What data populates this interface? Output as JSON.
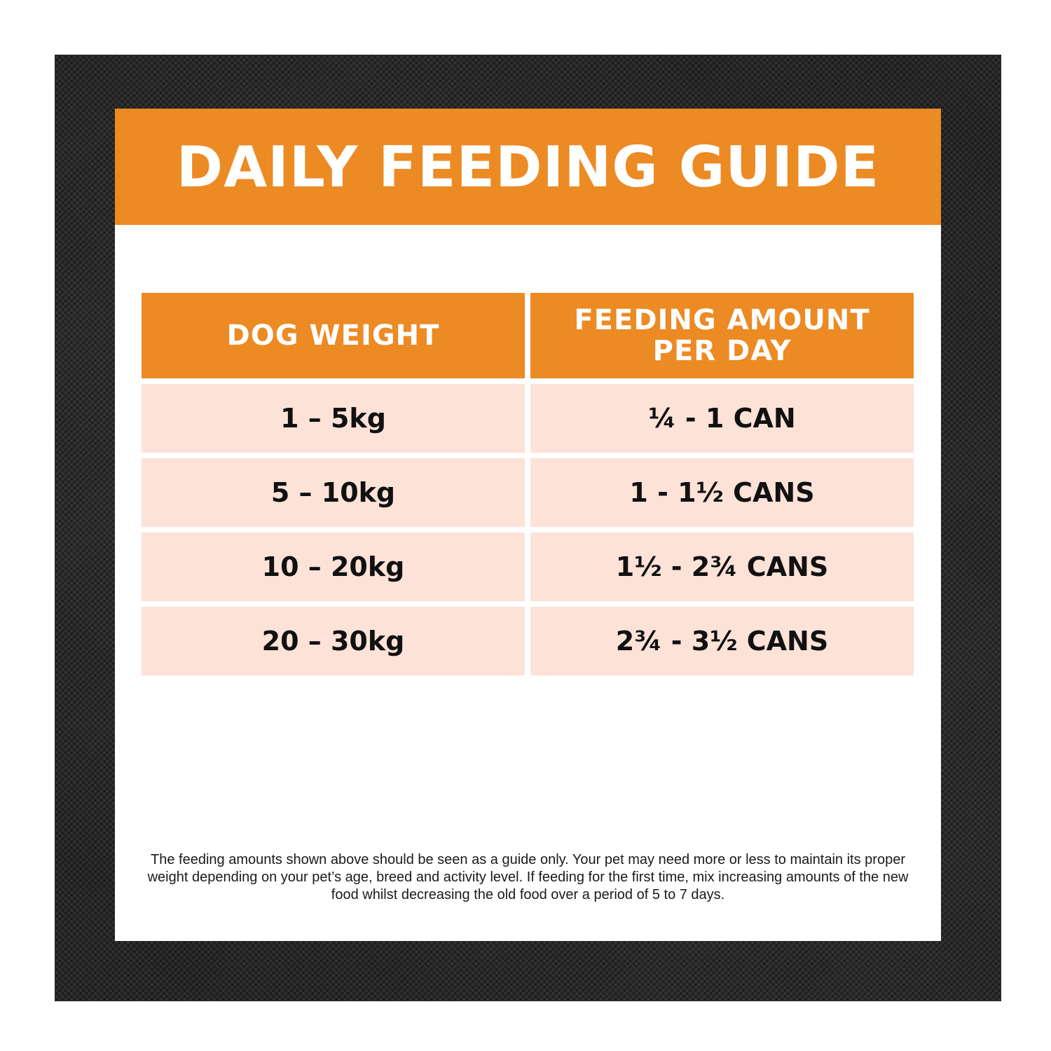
{
  "title": "DAILY FEEDING GUIDE",
  "table": {
    "headers": {
      "weight": "DOG WEIGHT",
      "amount_line1": "FEEDING AMOUNT",
      "amount_line2": "PER DAY"
    },
    "rows": [
      {
        "weight": "1 – 5kg",
        "amount": "¼ - 1 CAN"
      },
      {
        "weight": "5 – 10kg",
        "amount": "1 - 1½ CANS"
      },
      {
        "weight": "10 – 20kg",
        "amount": "1½ - 2¾ CANS"
      },
      {
        "weight": "20 – 30kg",
        "amount": "2¾ - 3½ CANS"
      }
    ]
  },
  "footnote": "The feeding amounts shown above should be seen as a guide only. Your pet may need more or less to maintain its proper weight depending on your pet’s age, breed and activity level. If feeding for the first time, mix increasing amounts of the new food whilst decreasing the old food over a period of 5 to 7 days.",
  "colors": {
    "accent": "#ec8a24",
    "row_fill": "#fde2d8",
    "frame": "#262626"
  }
}
